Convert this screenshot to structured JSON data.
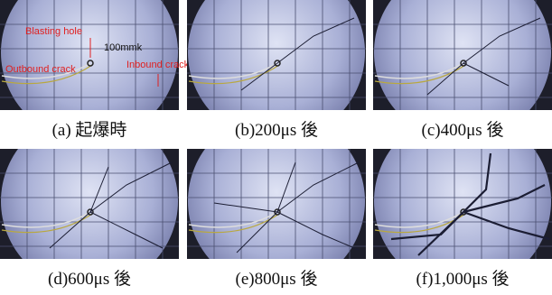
{
  "panels": [
    {
      "caption": "(a)  起爆時",
      "annotations": [
        "Blasting hole",
        "100mmk",
        "Outbound crack",
        "Inbound crack"
      ]
    },
    {
      "caption": "(b)200μs 後"
    },
    {
      "caption": "(c)400μs 後"
    },
    {
      "caption": "(d)600μs 後"
    },
    {
      "caption": "(e)800μs 後"
    },
    {
      "caption": "(f)1,000μs  後"
    }
  ]
}
